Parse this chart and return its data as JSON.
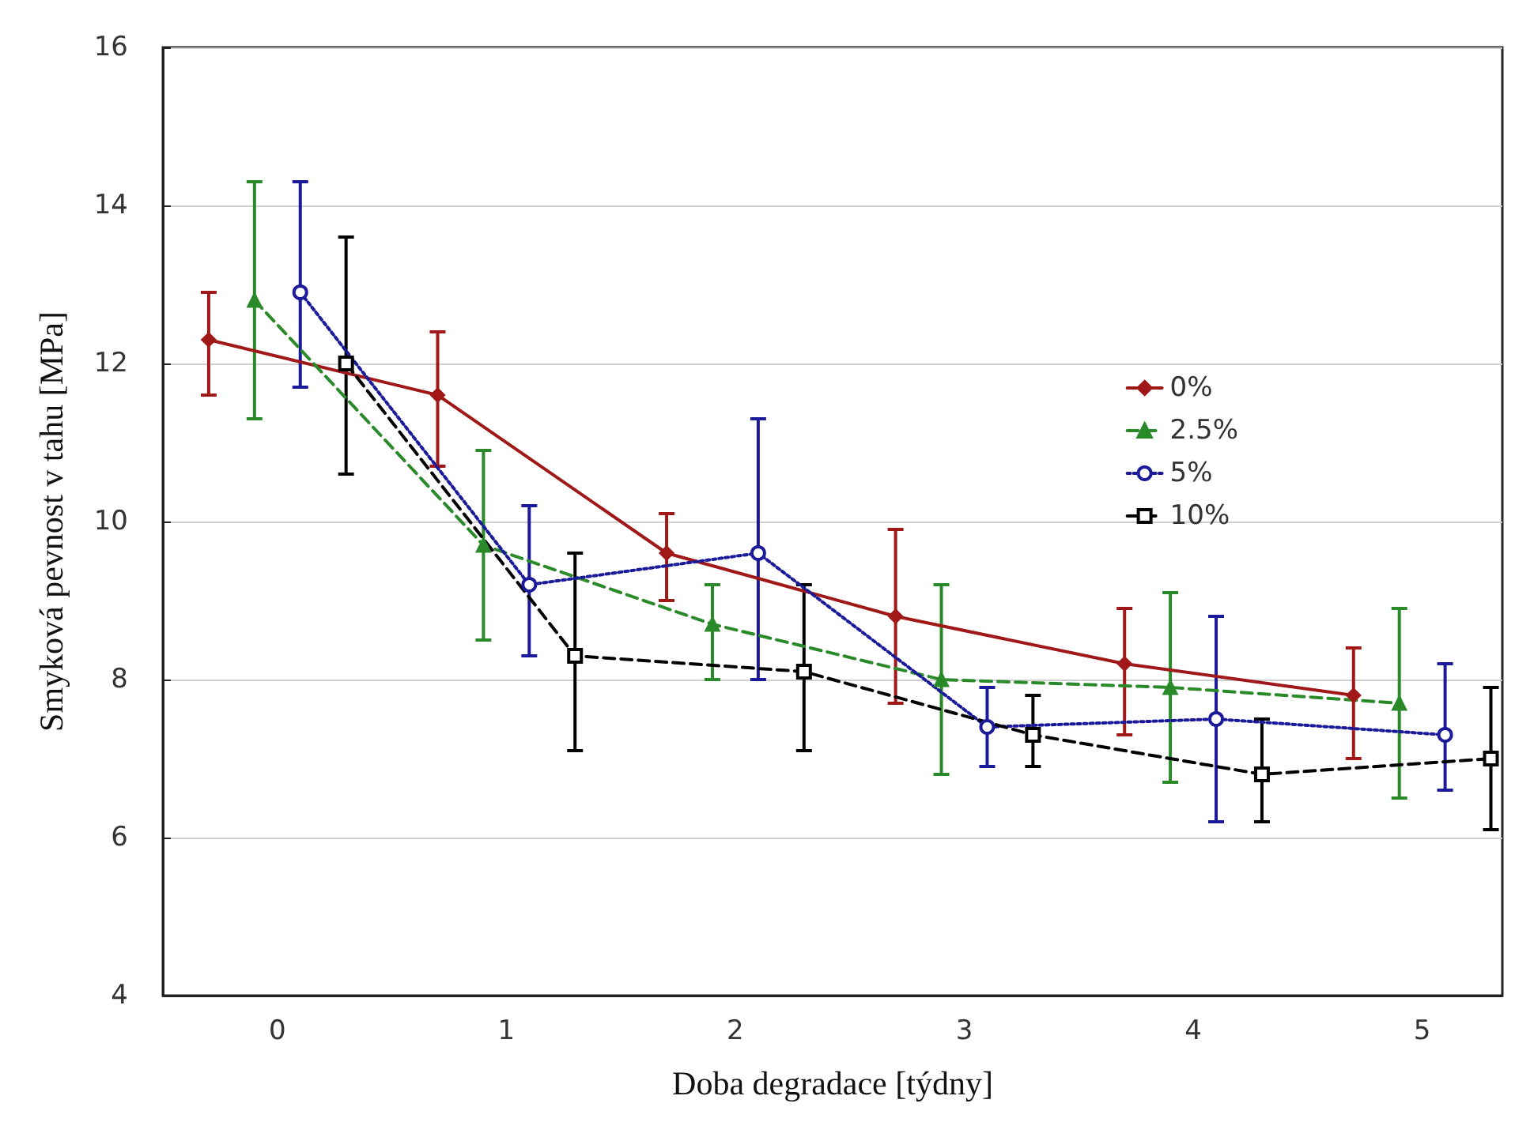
{
  "chart_data": {
    "type": "line",
    "xlabel": "Doba degradace [týdny]",
    "ylabel": "Smyková pevnost v tahu [MPa]",
    "xlim": [
      -0.5,
      5.35
    ],
    "xticks": [
      0,
      1,
      2,
      3,
      4,
      5
    ],
    "ylim": [
      4,
      16
    ],
    "yticks": [
      4,
      6,
      8,
      10,
      12,
      14,
      16
    ],
    "grid": "y",
    "legend": "right",
    "series": [
      {
        "name": "0%",
        "color": "#a01818",
        "marker": "diamond",
        "line_style": "solid",
        "x": [
          -0.3,
          0.7,
          1.7,
          2.7,
          3.7,
          4.7
        ],
        "values": [
          12.3,
          11.6,
          9.6,
          8.8,
          8.2,
          7.8
        ],
        "errors": [
          [
            11.6,
            12.9
          ],
          [
            10.7,
            12.4
          ],
          [
            9.0,
            10.1
          ],
          [
            7.7,
            9.9
          ],
          [
            7.3,
            8.9
          ],
          [
            7.0,
            8.4
          ]
        ]
      },
      {
        "name": "2.5%",
        "color": "#2a8a2a",
        "marker": "triangle",
        "line_style": "dashed",
        "x": [
          -0.1,
          0.9,
          1.9,
          2.9,
          3.9,
          4.9
        ],
        "values": [
          12.8,
          9.7,
          8.7,
          8.0,
          7.9,
          7.7
        ],
        "errors": [
          [
            11.3,
            14.3
          ],
          [
            8.5,
            10.9
          ],
          [
            8.0,
            9.2
          ],
          [
            6.8,
            9.2
          ],
          [
            6.7,
            9.1
          ],
          [
            6.5,
            8.9
          ]
        ]
      },
      {
        "name": "5%",
        "color": "#1a1a9a",
        "marker": "circle",
        "line_style": "dotted",
        "x": [
          0.1,
          1.1,
          2.1,
          3.1,
          4.1,
          5.1
        ],
        "values": [
          12.9,
          9.2,
          9.6,
          7.4,
          7.5,
          7.3
        ],
        "errors": [
          [
            11.7,
            14.3
          ],
          [
            8.3,
            10.2
          ],
          [
            8.0,
            11.3
          ],
          [
            6.9,
            7.9
          ],
          [
            6.2,
            8.8
          ],
          [
            6.6,
            8.2
          ]
        ]
      },
      {
        "name": "10%",
        "color": "#000000",
        "marker": "square",
        "line_style": "dashed",
        "x": [
          0.3,
          1.3,
          2.3,
          3.3,
          4.3,
          5.3
        ],
        "values": [
          12.0,
          8.3,
          8.1,
          7.3,
          6.8,
          7.0
        ],
        "errors": [
          [
            10.6,
            13.6
          ],
          [
            7.1,
            9.6
          ],
          [
            7.1,
            9.2
          ],
          [
            6.9,
            7.8
          ],
          [
            6.2,
            7.5
          ],
          [
            6.1,
            7.9
          ]
        ]
      }
    ]
  }
}
